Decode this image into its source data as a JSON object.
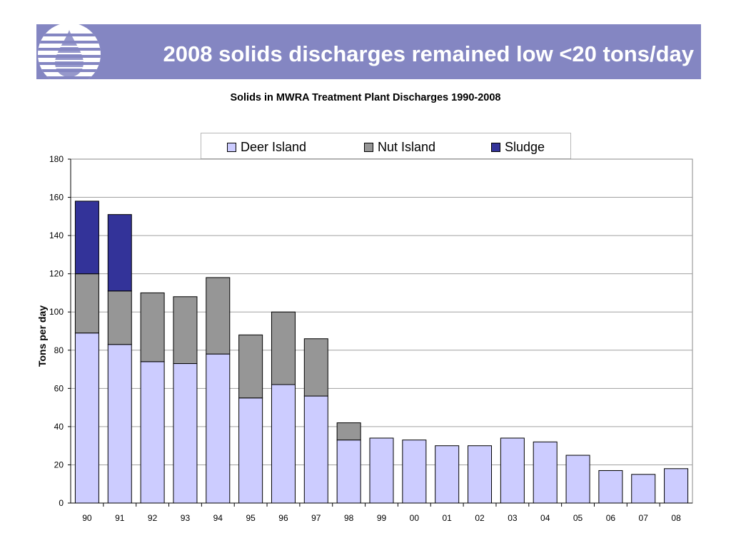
{
  "header": {
    "title": "2008 solids discharges remained low <20 tons/day"
  },
  "colors": {
    "banner": "#8486c2",
    "deer_island": "#ccccff",
    "nut_island": "#969696",
    "sludge": "#333399"
  },
  "chart_data": {
    "type": "bar",
    "stacked": true,
    "title": "Solids in MWRA Treatment Plant Discharges 1990-2008",
    "ylabel": "Tons per day",
    "xlabel": "",
    "ylim": [
      0,
      180
    ],
    "yticks": [
      0,
      20,
      40,
      60,
      80,
      100,
      120,
      140,
      160,
      180
    ],
    "grid": true,
    "legend_position": "top-center",
    "categories": [
      "90",
      "91",
      "92",
      "93",
      "94",
      "95",
      "96",
      "97",
      "98",
      "99",
      "00",
      "01",
      "02",
      "03",
      "04",
      "05",
      "06",
      "07",
      "08"
    ],
    "series": [
      {
        "name": "Deer Island",
        "color": "#ccccff",
        "values": [
          89,
          83,
          74,
          73,
          78,
          55,
          62,
          56,
          33,
          34,
          33,
          30,
          30,
          34,
          32,
          25,
          17,
          15,
          18
        ]
      },
      {
        "name": "Nut Island",
        "color": "#969696",
        "values": [
          31,
          28,
          36,
          35,
          40,
          33,
          38,
          30,
          9,
          0,
          0,
          0,
          0,
          0,
          0,
          0,
          0,
          0,
          0
        ]
      },
      {
        "name": "Sludge",
        "color": "#333399",
        "values": [
          38,
          40,
          0,
          0,
          0,
          0,
          0,
          0,
          0,
          0,
          0,
          0,
          0,
          0,
          0,
          0,
          0,
          0,
          0
        ]
      }
    ]
  }
}
